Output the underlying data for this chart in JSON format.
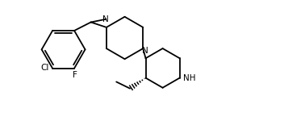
{
  "background_color": "#ffffff",
  "line_color": "#000000",
  "line_width": 1.3,
  "font_size": 7.5,
  "label_color": "#000000",
  "xlim": [
    0,
    10
  ],
  "ylim": [
    0,
    3.97
  ]
}
